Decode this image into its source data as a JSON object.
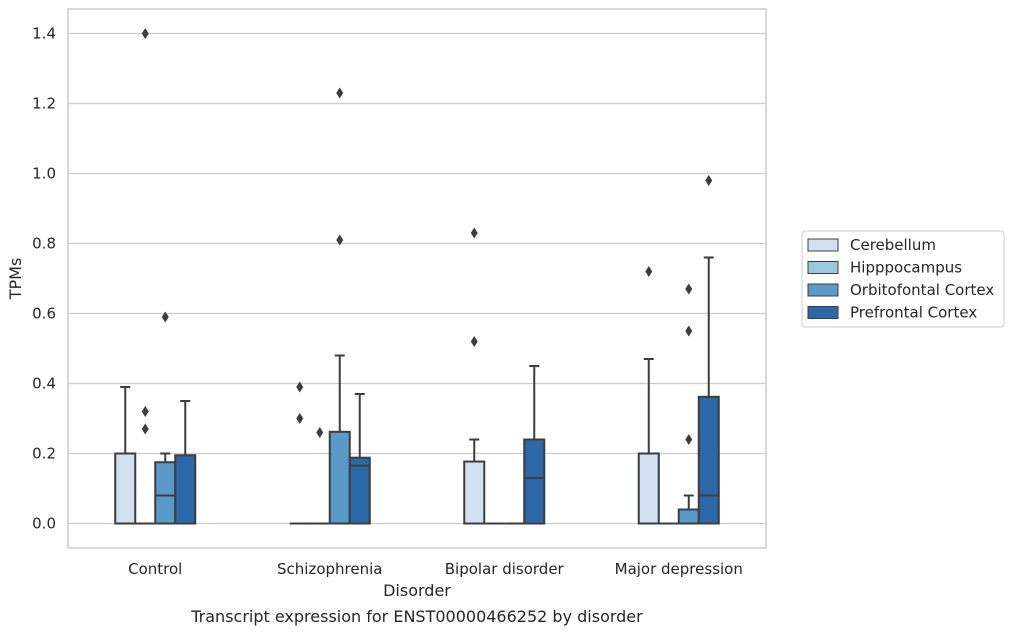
{
  "caption": "Transcript expression for ENST00000466252 by disorder",
  "chart_data": {
    "type": "box",
    "title": "",
    "xlabel": "Disorder",
    "ylabel": "TPMs",
    "ylim": [
      -0.07,
      1.47
    ],
    "yticks": [
      0.0,
      0.2,
      0.4,
      0.6,
      0.8,
      1.0,
      1.2,
      1.4
    ],
    "ytick_labels": [
      "0.0",
      "0.2",
      "0.4",
      "0.6",
      "0.8",
      "1.0",
      "1.2",
      "1.4"
    ],
    "grid": "horizontal",
    "legend_position": "right",
    "categories": [
      "Control",
      "Schizophrenia",
      "Bipolar disorder",
      "Major depression"
    ],
    "series": [
      {
        "name": "Cerebellum",
        "color": "#d2e1f1",
        "boxes": [
          {
            "q1": 0.0,
            "median": 0.0,
            "q3": 0.2,
            "whisker_low": 0.0,
            "whisker_high": 0.39,
            "outliers": []
          },
          {
            "q1": 0.0,
            "median": 0.0,
            "q3": 0.0,
            "whisker_low": 0.0,
            "whisker_high": 0.0,
            "outliers": [
              0.39,
              0.3
            ]
          },
          {
            "q1": 0.0,
            "median": 0.0,
            "q3": 0.177,
            "whisker_low": 0.0,
            "whisker_high": 0.24,
            "outliers": [
              0.83,
              0.52
            ]
          },
          {
            "q1": 0.0,
            "median": 0.0,
            "q3": 0.2,
            "whisker_low": 0.0,
            "whisker_high": 0.47,
            "outliers": [
              0.72
            ]
          }
        ]
      },
      {
        "name": "Hipppocampus",
        "color": "#9ac8e0",
        "boxes": [
          {
            "q1": 0.0,
            "median": 0.0,
            "q3": 0.0,
            "whisker_low": 0.0,
            "whisker_high": 0.0,
            "outliers": [
              1.4,
              0.32,
              0.27
            ]
          },
          {
            "q1": 0.0,
            "median": 0.0,
            "q3": 0.0,
            "whisker_low": 0.0,
            "whisker_high": 0.0,
            "outliers": [
              0.26
            ]
          },
          {
            "q1": 0.0,
            "median": 0.0,
            "q3": 0.0,
            "whisker_low": 0.0,
            "whisker_high": 0.0,
            "outliers": []
          },
          {
            "q1": 0.0,
            "median": 0.0,
            "q3": 0.0,
            "whisker_low": 0.0,
            "whisker_high": 0.0,
            "outliers": []
          }
        ]
      },
      {
        "name": "Orbitofontal Cortex",
        "color": "#5a9ac8",
        "boxes": [
          {
            "q1": 0.0,
            "median": 0.08,
            "q3": 0.175,
            "whisker_low": 0.0,
            "whisker_high": 0.2,
            "outliers": [
              0.59
            ]
          },
          {
            "q1": 0.0,
            "median": 0.0,
            "q3": 0.262,
            "whisker_low": 0.0,
            "whisker_high": 0.48,
            "outliers": [
              1.23,
              0.81
            ]
          },
          {
            "q1": 0.0,
            "median": 0.0,
            "q3": 0.0,
            "whisker_low": 0.0,
            "whisker_high": 0.0,
            "outliers": []
          },
          {
            "q1": 0.0,
            "median": 0.0,
            "q3": 0.04,
            "whisker_low": 0.0,
            "whisker_high": 0.08,
            "outliers": [
              0.67,
              0.55,
              0.24
            ]
          }
        ]
      },
      {
        "name": "Prefrontal Cortex",
        "color": "#2a68a8",
        "boxes": [
          {
            "q1": 0.0,
            "median": 0.0,
            "q3": 0.195,
            "whisker_low": 0.0,
            "whisker_high": 0.35,
            "outliers": []
          },
          {
            "q1": 0.0,
            "median": 0.165,
            "q3": 0.188,
            "whisker_low": 0.0,
            "whisker_high": 0.37,
            "outliers": []
          },
          {
            "q1": 0.0,
            "median": 0.13,
            "q3": 0.24,
            "whisker_low": 0.0,
            "whisker_high": 0.45,
            "outliers": []
          },
          {
            "q1": 0.0,
            "median": 0.08,
            "q3": 0.362,
            "whisker_low": 0.0,
            "whisker_high": 0.76,
            "outliers": [
              0.98
            ]
          }
        ]
      }
    ]
  }
}
